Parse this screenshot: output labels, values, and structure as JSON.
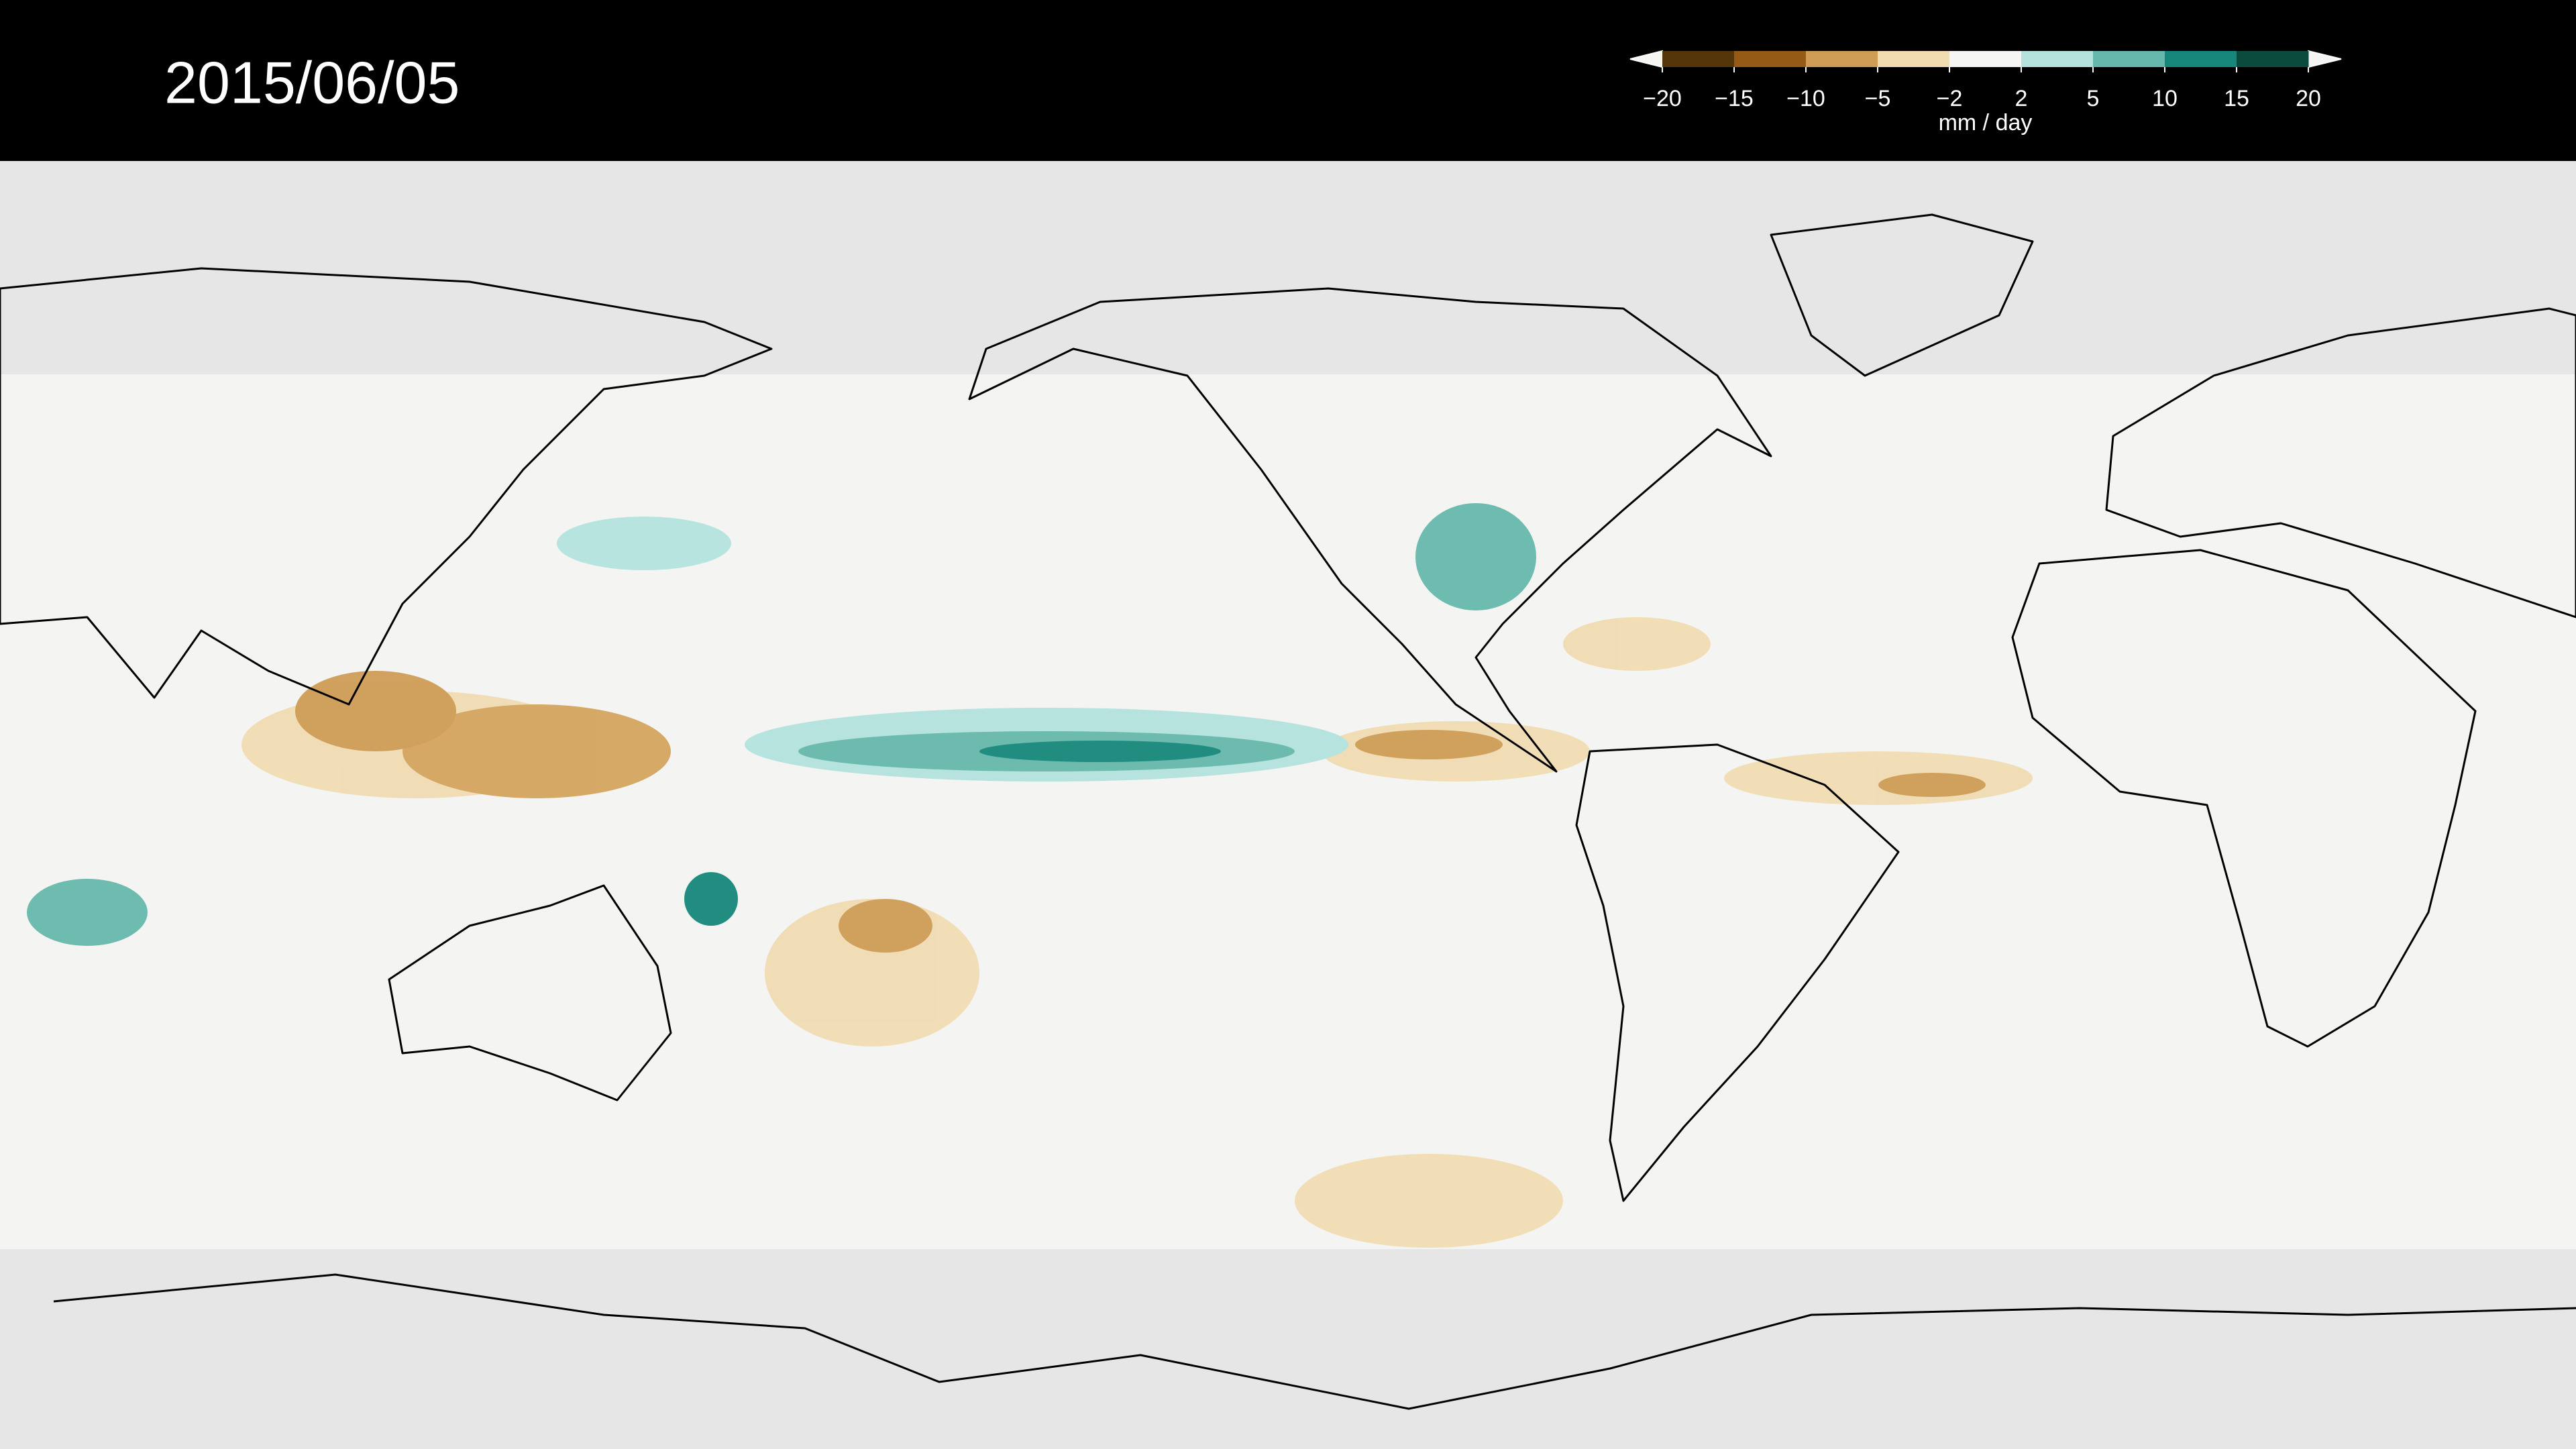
{
  "header": {
    "date": "2015/06/05"
  },
  "colorbar": {
    "ticks": [
      {
        "value": -20,
        "label": "−20"
      },
      {
        "value": -15,
        "label": "−15"
      },
      {
        "value": -10,
        "label": "−10"
      },
      {
        "value": -5,
        "label": "−5"
      },
      {
        "value": -2,
        "label": "−2"
      },
      2,
      5,
      10,
      15,
      20
    ],
    "colors": [
      "#543608",
      "#955b16",
      "#cf9d56",
      "#f1dcb2",
      "#f5f5f4",
      "#b3e3dc",
      "#65b8ab",
      "#16877a",
      "#0a4b3d"
    ],
    "unit": "mm / day"
  }
}
